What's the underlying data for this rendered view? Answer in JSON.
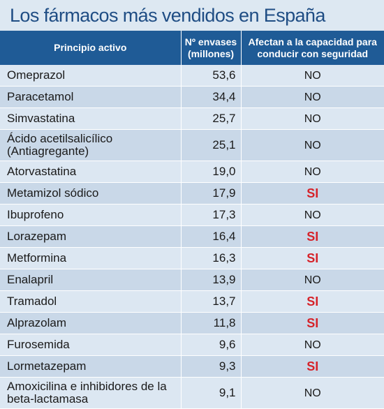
{
  "title": "Los fármacos más vendidos en España",
  "headers": {
    "principio": "Principio activo",
    "envases": "Nº envases (millones)",
    "afectan": "Afectan a la capacidad para conducir con seguridad"
  },
  "rows": [
    {
      "name": "Omeprazol",
      "value": "53,6",
      "flag": "NO"
    },
    {
      "name": "Paracetamol",
      "value": "34,4",
      "flag": "NO"
    },
    {
      "name": "Simvastatina",
      "value": "25,7",
      "flag": "NO"
    },
    {
      "name": "Ácido acetilsalicílico (Antiagregante)",
      "value": "25,1",
      "flag": "NO"
    },
    {
      "name": "Atorvastatina",
      "value": "19,0",
      "flag": "NO"
    },
    {
      "name": "Metamizol sódico",
      "value": "17,9",
      "flag": "SI"
    },
    {
      "name": "Ibuprofeno",
      "value": "17,3",
      "flag": "NO"
    },
    {
      "name": "Lorazepam",
      "value": "16,4",
      "flag": "SI"
    },
    {
      "name": "Metformina",
      "value": "16,3",
      "flag": "SI"
    },
    {
      "name": "Enalapril",
      "value": "13,9",
      "flag": "NO"
    },
    {
      "name": "Tramadol",
      "value": "13,7",
      "flag": "SI"
    },
    {
      "name": "Alprazolam",
      "value": "11,8",
      "flag": "SI"
    },
    {
      "name": "Furosemida",
      "value": "9,6",
      "flag": "NO"
    },
    {
      "name": "Lormetazepam",
      "value": "9,3",
      "flag": "SI"
    },
    {
      "name": "Amoxicilina e inhibidores de la beta-lactamasa",
      "value": "9,1",
      "flag": "NO"
    }
  ],
  "colors": {
    "header_bg": "#1f5b96",
    "title": "#1f4d84",
    "si": "#d6232a"
  }
}
